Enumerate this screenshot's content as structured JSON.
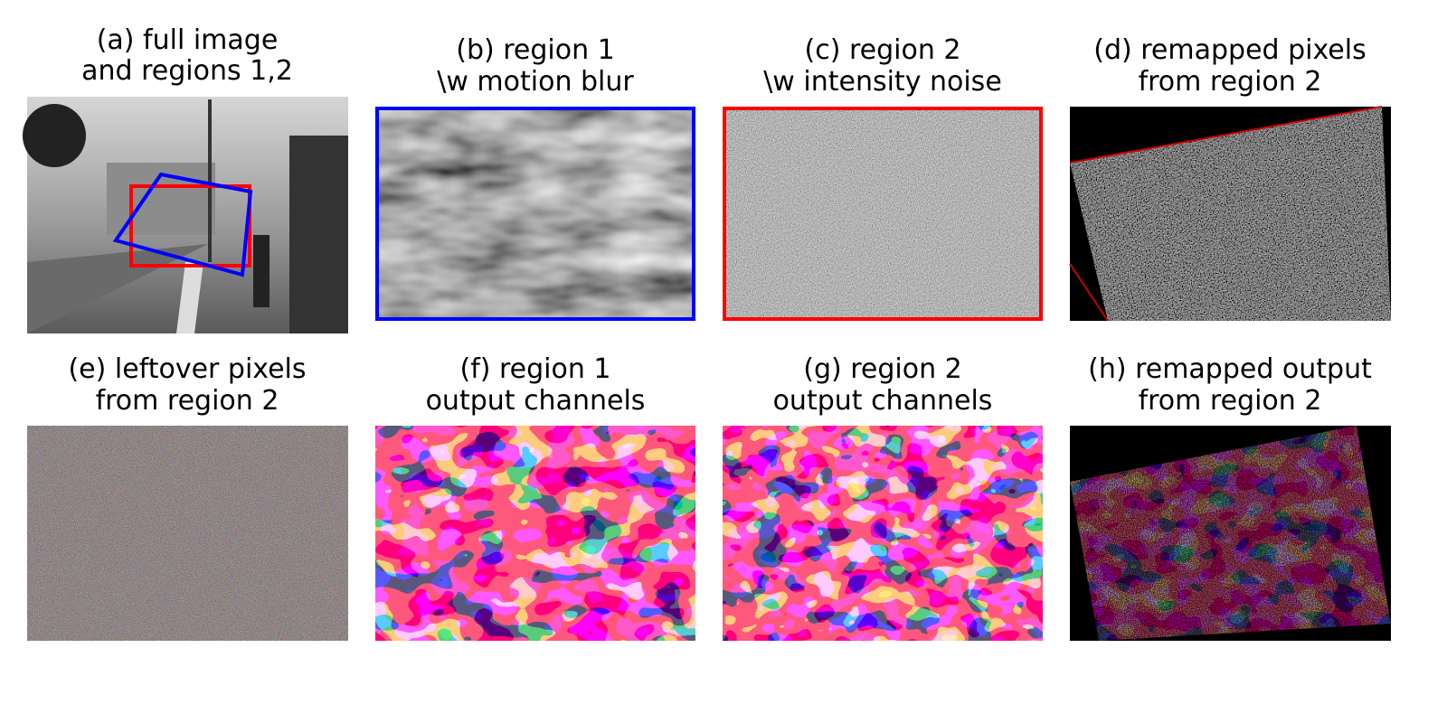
{
  "panels": [
    {
      "lines": [
        "(a) full image",
        "and regions 1,2"
      ]
    },
    {
      "lines": [
        "(b) region 1",
        "\\w motion blur"
      ]
    },
    {
      "lines": [
        "(c) region 2",
        "\\w intensity noise"
      ]
    },
    {
      "lines": [
        "(d) remapped pixels",
        "from region 2"
      ]
    },
    {
      "lines": [
        "(e) leftover pixels",
        "from region 2"
      ]
    },
    {
      "lines": [
        "(f) region 1",
        "output channels"
      ]
    },
    {
      "lines": [
        "(g) region 2",
        "output channels"
      ]
    },
    {
      "lines": [
        "(h) remapped output",
        "from region 2"
      ]
    }
  ]
}
